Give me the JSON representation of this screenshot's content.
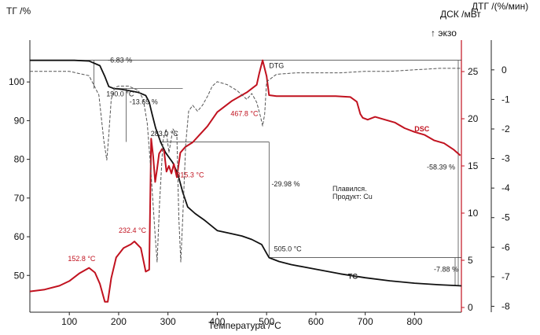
{
  "chart_data": {
    "type": "line",
    "ylabel_left": "ТГ /%",
    "ylabel_right1": "ДСК /мВт",
    "ylabel_right2": "ДТГ /(%/мин)",
    "exo_label": "↑ экзо",
    "xlabel": "Температура /°C",
    "xlim": [
      20,
      895
    ],
    "ylim_left": [
      40.5,
      110
    ],
    "ylim_dsc": [
      -0.5,
      28
    ],
    "ylim_dtg": [
      -8.2,
      0.9
    ],
    "x_ticks": [
      "100",
      "200",
      "300",
      "400",
      "500",
      "600",
      "700",
      "800"
    ],
    "y_left_ticks": [
      "50",
      "60",
      "70",
      "80",
      "90",
      "100"
    ],
    "y_dsc_ticks": [
      "0",
      "5",
      "10",
      "15",
      "20",
      "25"
    ],
    "y_dtg_ticks": [
      "0",
      "-1",
      "-2",
      "-3",
      "-4",
      "-5",
      "-6",
      "-7",
      "-8"
    ],
    "series": [
      {
        "name": "TG",
        "axis": "left",
        "color": "#111111",
        "x": [
          20,
          110,
          140,
          162,
          172,
          180,
          190,
          200,
          215,
          240,
          255,
          262,
          268,
          275,
          285,
          295,
          310,
          320,
          330,
          340,
          355,
          375,
          400,
          425,
          450,
          470,
          490,
          500,
          505,
          525,
          550,
          600,
          650,
          700,
          750,
          800,
          850,
          880,
          895
        ],
        "y": [
          105.6,
          105.6,
          105.4,
          104.2,
          101.4,
          98.8,
          98.3,
          98.2,
          97.9,
          97.3,
          96.5,
          94.8,
          91.6,
          88.1,
          84.5,
          81.8,
          79.1,
          76.2,
          71.5,
          67.7,
          66.0,
          64.2,
          61.6,
          60.9,
          60.2,
          59.3,
          58.0,
          55.7,
          54.6,
          53.6,
          52.8,
          51.6,
          50.4,
          49.4,
          48.6,
          48.0,
          47.6,
          47.4,
          47.3
        ]
      },
      {
        "name": "DSC",
        "axis": "dsc",
        "color": "#c1121f",
        "x": [
          20,
          50,
          80,
          100,
          120,
          140,
          152,
          162,
          172,
          178,
          185,
          195,
          210,
          225,
          232,
          245,
          255,
          262,
          266,
          270,
          274,
          278,
          282,
          288,
          292,
          297,
          302,
          307,
          312,
          318,
          325,
          335,
          350,
          380,
          400,
          430,
          460,
          480,
          485,
          492,
          500,
          505,
          520,
          560,
          600,
          640,
          670,
          683,
          690,
          695,
          705,
          720,
          740,
          760,
          780,
          800,
          820,
          840,
          860,
          880,
          893
        ],
        "y": [
          1.7,
          1.9,
          2.3,
          2.8,
          3.6,
          4.2,
          3.7,
          2.5,
          0.6,
          0.6,
          3.1,
          5.3,
          6.3,
          6.7,
          7.0,
          6.3,
          3.8,
          4.0,
          17.9,
          16.0,
          13.3,
          14.7,
          16.3,
          16.8,
          16.6,
          14.4,
          15.0,
          14.2,
          15.2,
          13.8,
          16.4,
          17.0,
          17.5,
          19.2,
          20.7,
          21.9,
          22.8,
          23.6,
          24.8,
          26.2,
          24.5,
          22.5,
          22.4,
          22.4,
          22.4,
          22.4,
          22.3,
          21.8,
          20.5,
          20.1,
          19.9,
          20.2,
          19.9,
          19.6,
          19.0,
          18.6,
          18.3,
          17.7,
          17.4,
          16.7,
          16.1
        ]
      },
      {
        "name": "DTG",
        "axis": "dtg",
        "color": "#555555",
        "dashed": true,
        "x": [
          20,
          100,
          140,
          160,
          170,
          176,
          180,
          185,
          192,
          200,
          220,
          240,
          250,
          258,
          264,
          270,
          274,
          278,
          283,
          290,
          296,
          302,
          310,
          318,
          322,
          326,
          330,
          336,
          342,
          350,
          360,
          370,
          380,
          390,
          400,
          420,
          440,
          460,
          470,
          480,
          488,
          492,
          496,
          500,
          520,
          560,
          600,
          650,
          700,
          750,
          800,
          850,
          895
        ],
        "y": [
          -0.05,
          -0.05,
          -0.2,
          -0.85,
          -2.4,
          -3.05,
          -2.2,
          -1.0,
          -0.6,
          -0.55,
          -0.55,
          -0.7,
          -1.0,
          -1.8,
          -3.1,
          -4.6,
          -5.6,
          -6.5,
          -4.5,
          -2.4,
          -2.0,
          -2.8,
          -2.0,
          -2.2,
          -5.0,
          -6.5,
          -5.0,
          -2.5,
          -1.4,
          -1.2,
          -1.4,
          -1.2,
          -0.9,
          -0.55,
          -0.4,
          -0.5,
          -0.7,
          -1.0,
          -0.8,
          -1.1,
          -1.6,
          -1.9,
          -1.5,
          -0.4,
          -0.15,
          -0.1,
          -0.1,
          -0.1,
          -0.05,
          -0.05,
          0.0,
          0.05,
          0.05
        ]
      }
    ],
    "legend_labels": {
      "dtg": "DTG",
      "dsc": "DSC",
      "tg": "TG"
    },
    "annotations": {
      "step1": "-6.83 %",
      "step2": "-13.69 %",
      "step3": "-29.98 %",
      "step4": "-58.39 %",
      "step5": "-7.88 %",
      "t190": "190.0 °C",
      "t283": "283.0 °C",
      "t505": "505.0 °C",
      "peak152": "152.8 °C",
      "peak232": "232.4 °C",
      "peak315": "315.3 °C",
      "peak467": "467.8 °C",
      "note1": "Плавился.",
      "note2": "Продукт: Cu"
    },
    "grid": false
  }
}
